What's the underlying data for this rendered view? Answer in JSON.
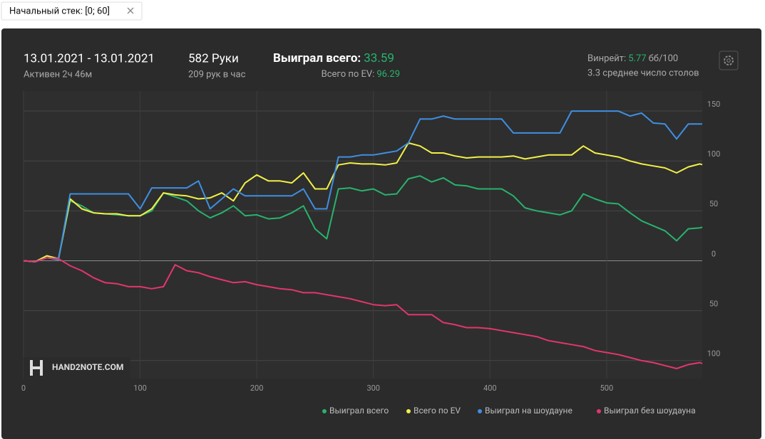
{
  "tab": {
    "label": "Начальный стек: [0; 60]"
  },
  "header": {
    "date_range": "13.01.2021 - 13.01.2021",
    "active": "Активен 2ч 46м",
    "hands": "582 Руки",
    "hands_per_hour": "209 рук в час",
    "won_label": "Выиграл всего:",
    "won_value": "33.59",
    "ev_label": "Всего по EV:",
    "ev_value": "96.29",
    "winrate_label": "Винрейт:",
    "winrate_value": "5.77",
    "winrate_unit": "бб/100",
    "tables": "3.3 среднее число столов"
  },
  "chart_data": {
    "type": "line",
    "watermark": "HAND2NOTE.COM",
    "grid": true,
    "legend": "bottom-right",
    "x": [
      0,
      10,
      20,
      30,
      40,
      50,
      60,
      70,
      80,
      90,
      100,
      110,
      120,
      130,
      140,
      150,
      160,
      170,
      180,
      190,
      200,
      210,
      220,
      230,
      240,
      250,
      260,
      270,
      280,
      290,
      300,
      310,
      320,
      330,
      340,
      350,
      360,
      370,
      380,
      390,
      400,
      410,
      420,
      430,
      440,
      450,
      460,
      470,
      480,
      490,
      500,
      510,
      520,
      530,
      540,
      550,
      560,
      570,
      580,
      582
    ],
    "xlim": [
      0,
      582
    ],
    "xticks": [
      0,
      100,
      200,
      300,
      400,
      500
    ],
    "ylim": [
      -118,
      170
    ],
    "yticks": [
      {
        "value": -100,
        "label": "100"
      },
      {
        "value": -50,
        "label": "50"
      },
      0,
      50,
      100,
      150
    ],
    "series": [
      {
        "name": "Выиграл всего",
        "color": "#27b36e",
        "values": [
          0,
          -1,
          5,
          2,
          60,
          55,
          48,
          47,
          46,
          45,
          45,
          50,
          68,
          64,
          60,
          50,
          43,
          48,
          55,
          45,
          46,
          42,
          43,
          48,
          55,
          32,
          22,
          72,
          73,
          70,
          72,
          66,
          67,
          82,
          85,
          79,
          83,
          76,
          75,
          72,
          72,
          72,
          65,
          53,
          50,
          48,
          46,
          50,
          67,
          62,
          58,
          57,
          48,
          40,
          35,
          30,
          20,
          32,
          33,
          33.59
        ]
      },
      {
        "name": "Всего по EV",
        "color": "#f2f047",
        "values": [
          0,
          -1,
          5,
          2,
          62,
          52,
          48,
          47,
          47,
          45,
          45,
          52,
          68,
          66,
          65,
          62,
          63,
          68,
          60,
          78,
          86,
          80,
          80,
          78,
          88,
          72,
          72,
          96,
          98,
          97,
          97,
          96,
          98,
          118,
          115,
          108,
          108,
          105,
          103,
          104,
          104,
          104,
          105,
          102,
          104,
          106,
          106,
          106,
          115,
          108,
          106,
          104,
          100,
          97,
          95,
          93,
          88,
          94,
          97,
          96.29
        ]
      },
      {
        "name": "Выиграл на шоудауне",
        "color": "#3e8fe2",
        "values": [
          0,
          -1,
          3,
          1,
          67,
          67,
          67,
          67,
          67,
          67,
          52,
          73,
          73,
          73,
          73,
          80,
          52,
          62,
          72,
          65,
          65,
          65,
          65,
          65,
          72,
          52,
          52,
          104,
          104,
          106,
          106,
          108,
          110,
          118,
          142,
          142,
          145,
          142,
          142,
          142,
          142,
          142,
          128,
          128,
          128,
          128,
          128,
          150,
          150,
          150,
          150,
          150,
          145,
          148,
          138,
          137,
          122,
          137,
          137,
          137
        ]
      },
      {
        "name": "Выиграл без шоудауна",
        "color": "#e3366b",
        "values": [
          0,
          -1,
          3,
          2,
          -5,
          -10,
          -17,
          -22,
          -23,
          -26,
          -26,
          -28,
          -26,
          -4,
          -10,
          -12,
          -16,
          -19,
          -22,
          -21,
          -24,
          -26,
          -28,
          -29,
          -32,
          -32,
          -34,
          -36,
          -38,
          -41,
          -44,
          -45,
          -44,
          -54,
          -54,
          -54,
          -62,
          -64,
          -67,
          -67,
          -68,
          -70,
          -72,
          -74,
          -76,
          -80,
          -82,
          -84,
          -86,
          -90,
          -92,
          -94,
          -97,
          -100,
          -102,
          -105,
          -108,
          -104,
          -102,
          -103
        ]
      }
    ]
  }
}
